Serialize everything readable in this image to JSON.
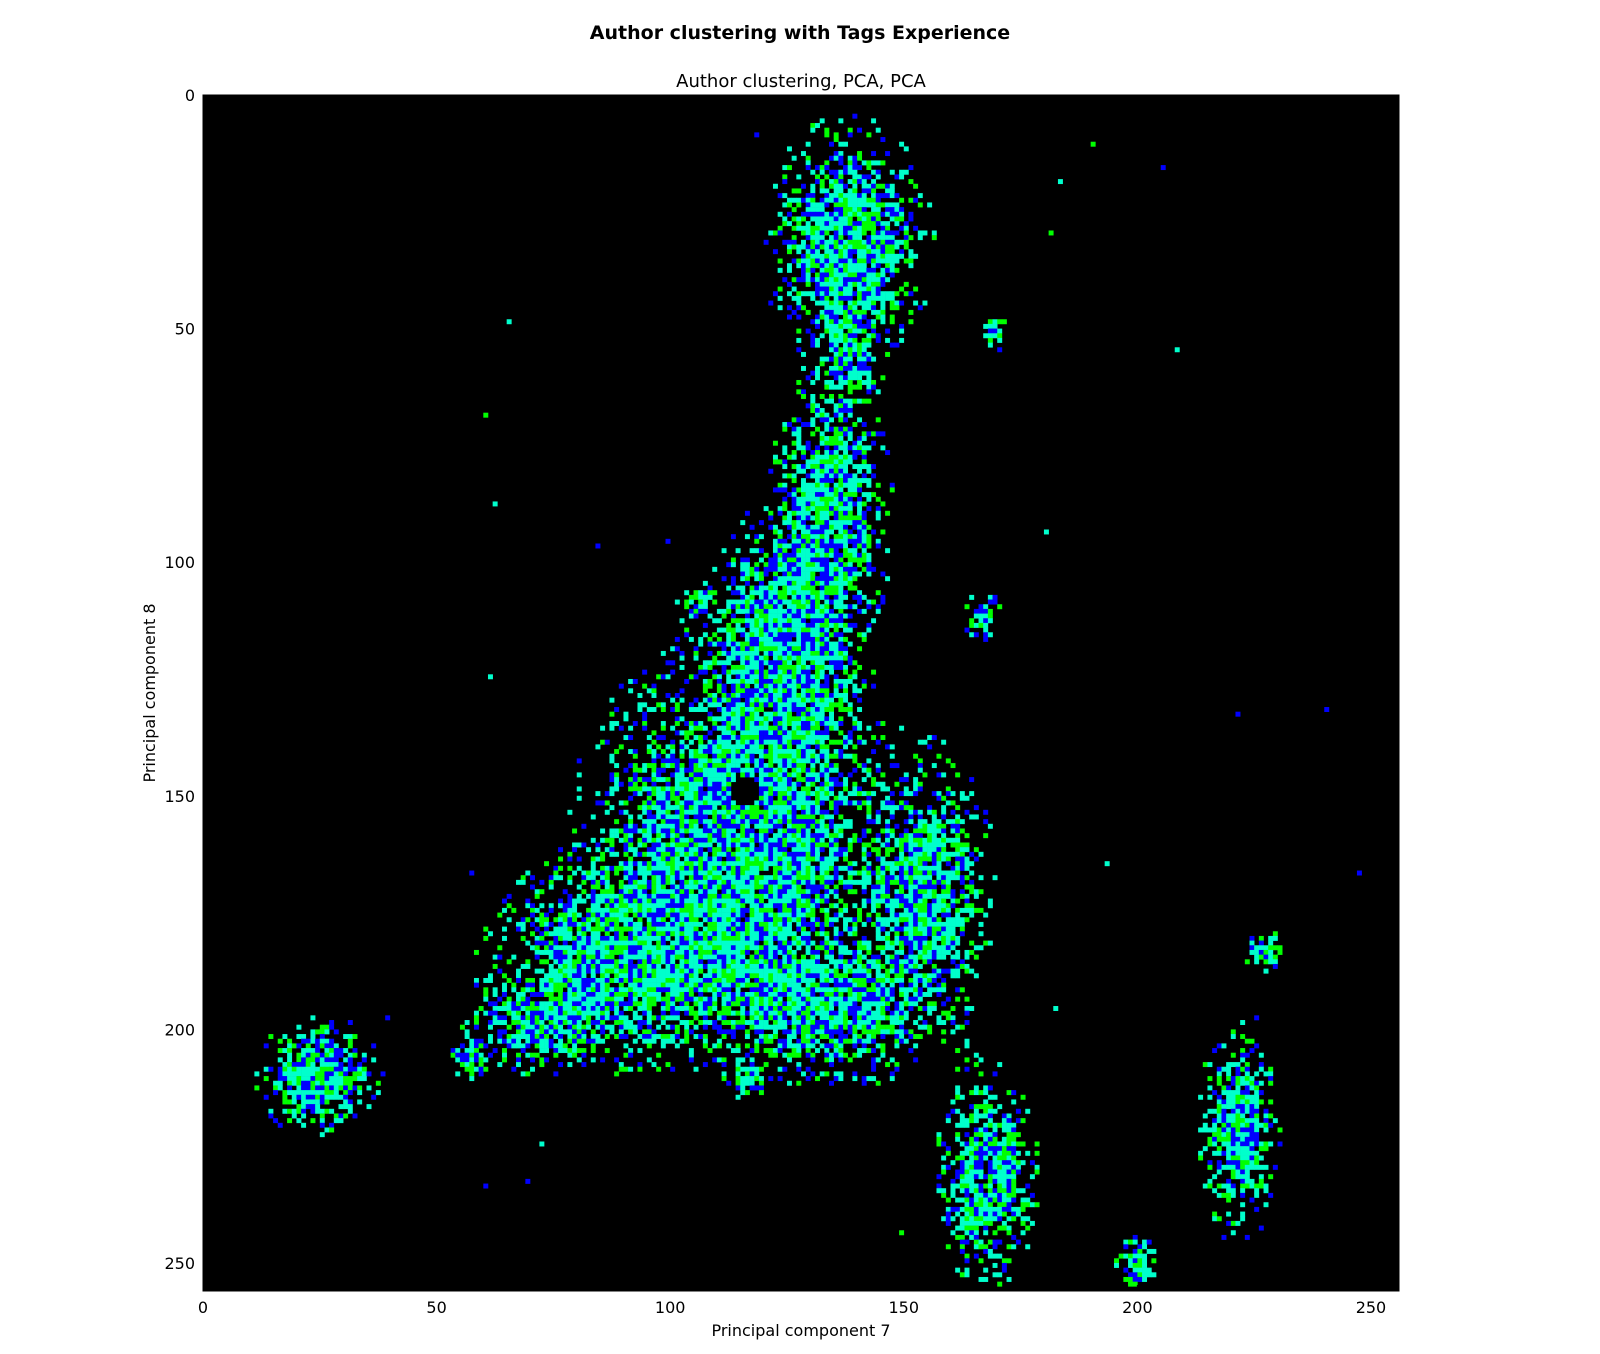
{
  "suptitle": "Author clustering with Tags Experience",
  "chart_data": {
    "type": "heatmap",
    "title": "Author clustering, PCA, PCA",
    "xlabel": "Principal component 7",
    "ylabel": "Principal component 8",
    "xlim": [
      0,
      256
    ],
    "ylim": [
      256,
      0
    ],
    "y_inverted": true,
    "xticks": [
      0,
      50,
      100,
      150,
      200,
      250
    ],
    "yticks": [
      0,
      50,
      100,
      150,
      200,
      250
    ],
    "grid": false,
    "background_color": "#000000",
    "colormap": [
      "#0000ff",
      "#00ffcc",
      "#00ff00"
    ],
    "clusters": [
      {
        "name": "top",
        "x": 138,
        "y": 32,
        "sx": 8,
        "sy": 12,
        "density": 0.9
      },
      {
        "name": "top-stem",
        "x": 138,
        "y": 55,
        "sx": 3,
        "sy": 8,
        "density": 0.6
      },
      {
        "name": "upper-arm",
        "x": 134,
        "y": 90,
        "sx": 6,
        "sy": 14,
        "density": 0.85
      },
      {
        "name": "mid-arm",
        "x": 124,
        "y": 120,
        "sx": 8,
        "sy": 14,
        "density": 0.85
      },
      {
        "name": "core",
        "x": 115,
        "y": 160,
        "sx": 16,
        "sy": 20,
        "density": 0.9
      },
      {
        "name": "lower-left-arm",
        "x": 90,
        "y": 185,
        "sx": 14,
        "sy": 10,
        "density": 0.85
      },
      {
        "name": "tail",
        "x": 72,
        "y": 200,
        "sx": 8,
        "sy": 5,
        "density": 0.5
      },
      {
        "name": "right-lobe",
        "x": 155,
        "y": 170,
        "sx": 7,
        "sy": 14,
        "density": 0.7
      },
      {
        "name": "lower-core",
        "x": 135,
        "y": 195,
        "sx": 12,
        "sy": 8,
        "density": 0.7
      },
      {
        "name": "left-cluster",
        "x": 25,
        "y": 210,
        "sx": 6,
        "sy": 6,
        "density": 0.9
      },
      {
        "name": "bottom-mid",
        "x": 168,
        "y": 232,
        "sx": 5,
        "sy": 11,
        "density": 0.85
      },
      {
        "name": "bottom-right",
        "x": 222,
        "y": 222,
        "sx": 4,
        "sy": 11,
        "density": 0.85
      },
      {
        "name": "right-small",
        "x": 227,
        "y": 183,
        "sx": 2,
        "sy": 2,
        "density": 0.8
      },
      {
        "name": "bottom-small",
        "x": 200,
        "y": 250,
        "sx": 2,
        "sy": 3,
        "density": 0.8
      },
      {
        "name": "island-1",
        "x": 167,
        "y": 112,
        "sx": 2,
        "sy": 3,
        "density": 0.6
      },
      {
        "name": "island-2",
        "x": 169,
        "y": 51,
        "sx": 1.5,
        "sy": 2,
        "density": 0.6
      },
      {
        "name": "island-3",
        "x": 106,
        "y": 108,
        "sx": 2,
        "sy": 2,
        "density": 0.6
      },
      {
        "name": "island-4",
        "x": 57,
        "y": 206,
        "sx": 2,
        "sy": 2,
        "density": 0.7
      },
      {
        "name": "island-5",
        "x": 116,
        "y": 210,
        "sx": 2,
        "sy": 2,
        "density": 0.7
      }
    ],
    "holes": [
      {
        "x": 116,
        "y": 149,
        "r": 3.5
      }
    ]
  }
}
